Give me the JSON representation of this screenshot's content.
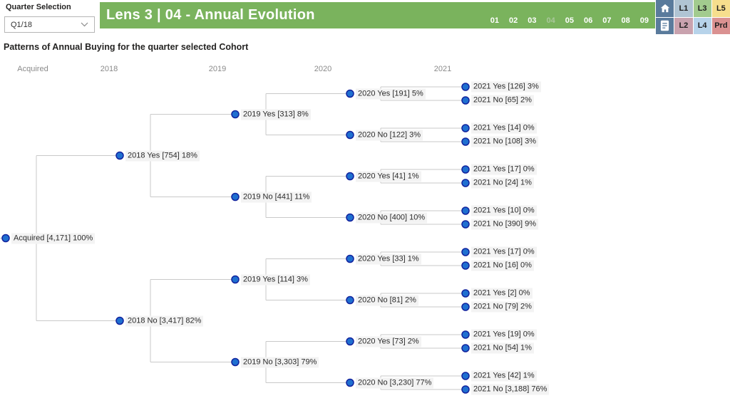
{
  "quarter_selection": {
    "label": "Quarter Selection",
    "value": "Q1/18"
  },
  "title_bar": {
    "title": "Lens 3 | 04 - Annual Evolution",
    "pages": [
      "01",
      "02",
      "03",
      "04",
      "05",
      "06",
      "07",
      "08",
      "09"
    ],
    "active_page": "04"
  },
  "nav_grid": {
    "cells": [
      {
        "icon": "home-icon",
        "bg": "#5a7b9c"
      },
      {
        "label": "L1",
        "bg": "#b0c4d3"
      },
      {
        "label": "L3",
        "bg": "#a2cb8e"
      },
      {
        "label": "L5",
        "bg": "#f6de8d"
      },
      {
        "icon": "document-icon",
        "bg": "#5a7b9c"
      },
      {
        "label": "L2",
        "bg": "#c9a2ae"
      },
      {
        "label": "L4",
        "bg": "#b7d3ea"
      },
      {
        "label": "Prd",
        "bg": "#da9191"
      }
    ]
  },
  "subtitle": "Patterns of Annual Buying for the quarter selected Cohort",
  "tree": {
    "column_headers": [
      "Acquired",
      "2018",
      "2019",
      "2020",
      "2021"
    ],
    "root": {
      "label": "Acquired [4,171] 100%",
      "children": [
        {
          "label": "2018 Yes [754] 18%",
          "children": [
            {
              "label": "2019 Yes [313] 8%",
              "children": [
                {
                  "label": "2020 Yes [191] 5%",
                  "children": [
                    {
                      "label": "2021 Yes [126] 3%"
                    },
                    {
                      "label": "2021 No [65] 2%"
                    }
                  ]
                },
                {
                  "label": "2020 No [122] 3%",
                  "children": [
                    {
                      "label": "2021 Yes [14] 0%"
                    },
                    {
                      "label": "2021 No [108] 3%"
                    }
                  ]
                }
              ]
            },
            {
              "label": "2019 No [441] 11%",
              "children": [
                {
                  "label": "2020 Yes [41] 1%",
                  "children": [
                    {
                      "label": "2021 Yes [17] 0%"
                    },
                    {
                      "label": "2021 No [24] 1%"
                    }
                  ]
                },
                {
                  "label": "2020 No [400] 10%",
                  "children": [
                    {
                      "label": "2021 Yes [10] 0%"
                    },
                    {
                      "label": "2021 No [390] 9%"
                    }
                  ]
                }
              ]
            }
          ]
        },
        {
          "label": "2018 No [3,417] 82%",
          "children": [
            {
              "label": "2019 Yes [114] 3%",
              "children": [
                {
                  "label": "2020 Yes [33] 1%",
                  "children": [
                    {
                      "label": "2021 Yes [17] 0%"
                    },
                    {
                      "label": "2021 No [16] 0%"
                    }
                  ]
                },
                {
                  "label": "2020 No [81] 2%",
                  "children": [
                    {
                      "label": "2021 Yes [2] 0%"
                    },
                    {
                      "label": "2021 No [79] 2%"
                    }
                  ]
                }
              ]
            },
            {
              "label": "2019 No [3,303] 79%",
              "children": [
                {
                  "label": "2020 Yes [73] 2%",
                  "children": [
                    {
                      "label": "2021 Yes [19] 0%"
                    },
                    {
                      "label": "2021 No [54] 1%"
                    }
                  ]
                },
                {
                  "label": "2020 No [3,230] 77%",
                  "children": [
                    {
                      "label": "2021 Yes [42] 1%"
                    },
                    {
                      "label": "2021 No [3,188] 76%"
                    }
                  ]
                }
              ]
            }
          ]
        }
      ]
    }
  },
  "colors": {
    "header_green": "#7ab35d",
    "active_page": "#a9c79a",
    "node_fill": "#1f6fd0",
    "node_stroke": "#12239e",
    "connector": "#c9c9c9",
    "nav_icon_bg": "#5a7b9c"
  }
}
